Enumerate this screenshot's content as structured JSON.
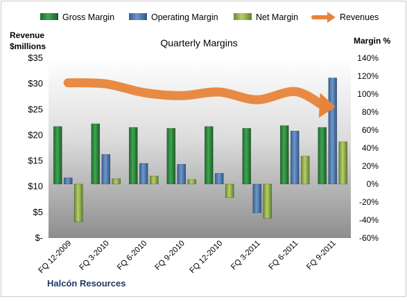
{
  "chart_data": {
    "type": "bar",
    "title": "Quarterly Margins",
    "company": "Halcón Resources",
    "left_axis": {
      "title_line1": "Revenue",
      "title_line2": "$millions",
      "ylim": [
        0,
        35
      ],
      "ticks": [
        0,
        5,
        10,
        15,
        20,
        25,
        30,
        35
      ],
      "tick_labels": [
        "$-",
        "$5",
        "$10",
        "$15",
        "$20",
        "$25",
        "$30",
        "$35"
      ]
    },
    "right_axis": {
      "title": "Margin %",
      "ylim": [
        -60,
        140
      ],
      "ticks": [
        -60,
        -40,
        -20,
        0,
        20,
        40,
        60,
        80,
        100,
        120,
        140
      ],
      "tick_labels": [
        "-60%",
        "-40%",
        "-20%",
        "0%",
        "20%",
        "40%",
        "60%",
        "80%",
        "100%",
        "120%",
        "140%"
      ]
    },
    "categories": [
      "FQ 12-2009",
      "FQ 3-2010",
      "FQ 6-2010",
      "FQ 9-2010",
      "FQ 12-2010",
      "FQ 3-2011",
      "FQ 6-2011",
      "FQ 9-2011"
    ],
    "series": [
      {
        "name": "Gross Margin",
        "axis": "right",
        "type": "bar",
        "color": "#2e8b3e",
        "values": [
          64,
          67,
          63,
          62,
          64,
          62,
          65,
          63
        ]
      },
      {
        "name": "Operating Margin",
        "axis": "right",
        "type": "bar",
        "color": "#4f81bd",
        "values": [
          7,
          33,
          23,
          22,
          12,
          -32,
          59,
          118
        ]
      },
      {
        "name": "Net Margin",
        "axis": "right",
        "type": "bar",
        "color": "#9bbb59",
        "values": [
          -42,
          6,
          9,
          5,
          -15,
          -38,
          31,
          47
        ]
      },
      {
        "name": "Revenues",
        "axis": "left",
        "type": "line",
        "color": "#e8843a",
        "values": [
          30.2,
          30,
          28.3,
          27.7,
          28.4,
          26.9,
          28.5,
          25.8
        ]
      }
    ],
    "legend_position": "top",
    "grid": false
  }
}
